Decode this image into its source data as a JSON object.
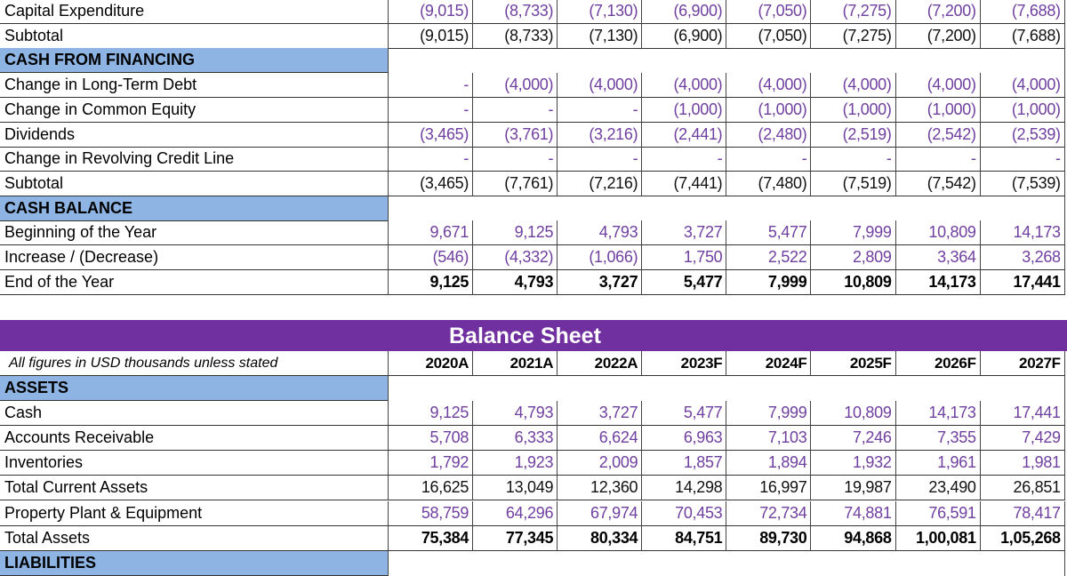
{
  "cash_flow_rows": [
    {
      "label": "Capital Expenditure",
      "style": "purple",
      "values": [
        "(9,015)",
        "(8,733)",
        "(7,130)",
        "(6,900)",
        "(7,050)",
        "(7,275)",
        "(7,200)",
        "(7,688)"
      ]
    },
    {
      "label": "Subtotal",
      "style": "black",
      "values": [
        "(9,015)",
        "(8,733)",
        "(7,130)",
        "(6,900)",
        "(7,050)",
        "(7,275)",
        "(7,200)",
        "(7,688)"
      ]
    },
    {
      "label": "CASH FROM FINANCING",
      "style": "section",
      "values": []
    },
    {
      "label": "Change in Long-Term Debt",
      "style": "purple",
      "values": [
        "-",
        "(4,000)",
        "(4,000)",
        "(4,000)",
        "(4,000)",
        "(4,000)",
        "(4,000)",
        "(4,000)"
      ]
    },
    {
      "label": "Change in Common Equity",
      "style": "purple",
      "values": [
        "-",
        "-",
        "-",
        "(1,000)",
        "(1,000)",
        "(1,000)",
        "(1,000)",
        "(1,000)"
      ]
    },
    {
      "label": "Dividends",
      "style": "purple",
      "values": [
        "(3,465)",
        "(3,761)",
        "(3,216)",
        "(2,441)",
        "(2,480)",
        "(2,519)",
        "(2,542)",
        "(2,539)"
      ]
    },
    {
      "label": "Change in Revolving Credit Line",
      "style": "purple",
      "values": [
        "-",
        "-",
        "-",
        "-",
        "-",
        "-",
        "-",
        "-"
      ]
    },
    {
      "label": "Subtotal",
      "style": "black",
      "values": [
        "(3,465)",
        "(7,761)",
        "(7,216)",
        "(7,441)",
        "(7,480)",
        "(7,519)",
        "(7,542)",
        "(7,539)"
      ]
    },
    {
      "label": "CASH BALANCE",
      "style": "section",
      "values": []
    },
    {
      "label": "Beginning of the Year",
      "style": "purple",
      "values": [
        "9,671",
        "9,125",
        "4,793",
        "3,727",
        "5,477",
        "7,999",
        "10,809",
        "14,173"
      ]
    },
    {
      "label": "Increase / (Decrease)",
      "style": "purple",
      "values": [
        "(546)",
        "(4,332)",
        "(1,066)",
        "1,750",
        "2,522",
        "2,809",
        "3,364",
        "3,268"
      ]
    },
    {
      "label": "End of the Year",
      "style": "bold",
      "values": [
        "9,125",
        "4,793",
        "3,727",
        "5,477",
        "7,999",
        "10,809",
        "14,173",
        "17,441"
      ]
    }
  ],
  "balance_sheet": {
    "title": "Balance Sheet",
    "note": "All figures in USD thousands unless stated",
    "years": [
      "2020A",
      "2021A",
      "2022A",
      "2023F",
      "2024F",
      "2025F",
      "2026F",
      "2027F"
    ],
    "rows": [
      {
        "label": "ASSETS",
        "style": "section",
        "values": []
      },
      {
        "label": "Cash",
        "style": "purple",
        "values": [
          "9,125",
          "4,793",
          "3,727",
          "5,477",
          "7,999",
          "10,809",
          "14,173",
          "17,441"
        ]
      },
      {
        "label": "Accounts Receivable",
        "style": "purple",
        "values": [
          "5,708",
          "6,333",
          "6,624",
          "6,963",
          "7,103",
          "7,246",
          "7,355",
          "7,429"
        ]
      },
      {
        "label": "Inventories",
        "style": "purple",
        "values": [
          "1,792",
          "1,923",
          "2,009",
          "1,857",
          "1,894",
          "1,932",
          "1,961",
          "1,981"
        ]
      },
      {
        "label": "Total Current Assets",
        "style": "black",
        "values": [
          "16,625",
          "13,049",
          "12,360",
          "14,298",
          "16,997",
          "19,987",
          "23,490",
          "26,851"
        ]
      },
      {
        "label": "Property Plant & Equipment",
        "style": "purple",
        "values": [
          "58,759",
          "64,296",
          "67,974",
          "70,453",
          "72,734",
          "74,881",
          "76,591",
          "78,417"
        ]
      },
      {
        "label": "Total Assets",
        "style": "bold",
        "values": [
          "75,384",
          "77,345",
          "80,334",
          "84,751",
          "89,730",
          "94,868",
          "1,00,081",
          "1,05,268"
        ]
      },
      {
        "label": "LIABILITIES",
        "style": "section",
        "values": []
      }
    ]
  },
  "colors": {
    "banner": "#7030a0",
    "section": "#8db4e2",
    "input_text": "#7040a0"
  }
}
